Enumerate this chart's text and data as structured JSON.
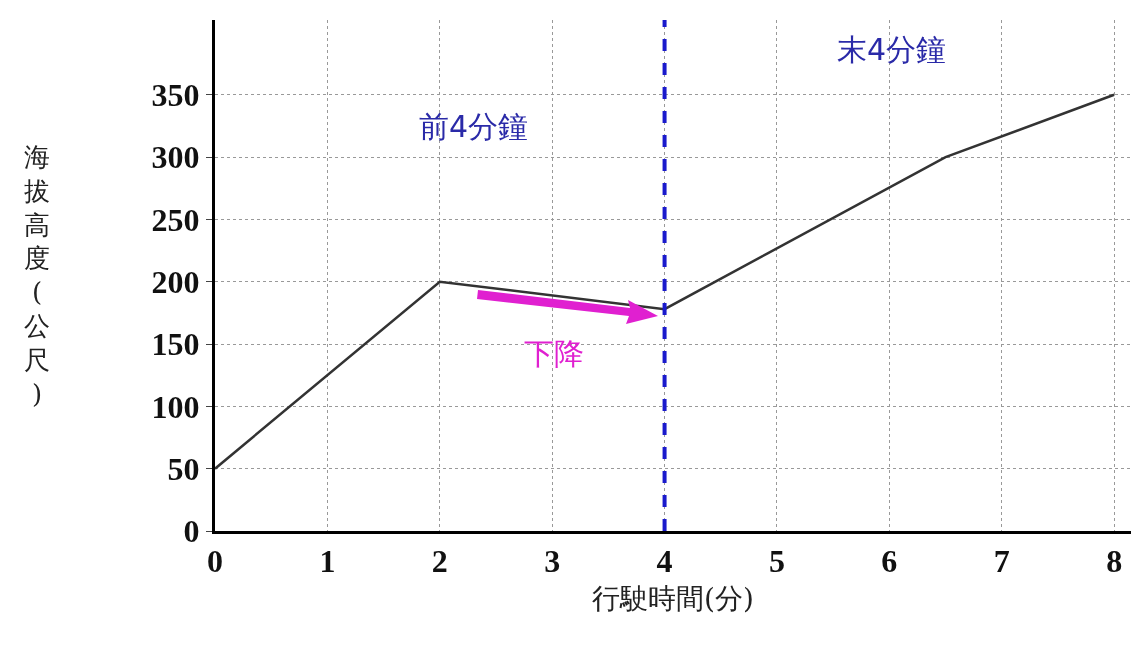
{
  "chart_data": {
    "type": "line",
    "xlabel": "行駛時間(分)",
    "ylabel": "海拔高度(公尺)",
    "x": [
      0,
      2,
      4,
      6.5,
      8
    ],
    "series": [
      {
        "color": "#333333",
        "values": [
          50,
          200,
          178,
          300,
          350
        ]
      }
    ],
    "xlim": [
      0,
      8.15
    ],
    "ylim": [
      0,
      410
    ],
    "xticks": [
      0,
      1,
      2,
      3,
      4,
      5,
      6,
      7,
      8
    ],
    "yticks": [
      0,
      50,
      100,
      150,
      200,
      250,
      300,
      350
    ],
    "grid": true,
    "marker": "none",
    "line_style": "solid",
    "ref_lines": [
      {
        "axis": "x",
        "value": 4,
        "label": null,
        "color": "#1a1acc",
        "line_style": "dashed"
      }
    ],
    "annotations": [
      "前4分鐘",
      "末4分鐘",
      "下降"
    ]
  }
}
